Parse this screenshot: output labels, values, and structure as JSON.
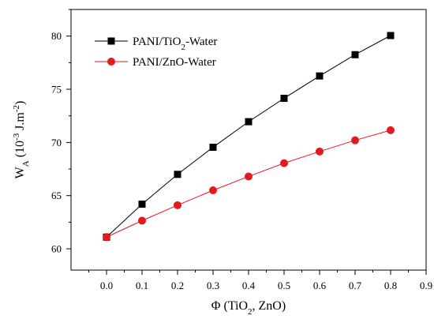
{
  "chart_data": {
    "type": "line",
    "xlabel": "Φ (TiO₂, ZnO)",
    "ylabel": "W_A (10⁻³ J.m⁻²)",
    "xlim": [
      -0.1,
      0.9
    ],
    "ylim": [
      58,
      82.5
    ],
    "xticks": [
      0.0,
      0.1,
      0.2,
      0.3,
      0.4,
      0.5,
      0.6,
      0.7,
      0.8,
      0.9
    ],
    "xtick_labels": [
      "0.0",
      "0.1",
      "0.2",
      "0.3",
      "0.4",
      "0.5",
      "0.6",
      "0.7",
      "0.8",
      "0.9"
    ],
    "yticks": [
      60,
      65,
      70,
      75,
      80
    ],
    "ytick_labels": [
      "60",
      "65",
      "70",
      "75",
      "80"
    ],
    "grid": false,
    "legend_position": "top-left",
    "x": [
      0.0,
      0.1,
      0.2,
      0.3,
      0.4,
      0.5,
      0.6,
      0.7,
      0.8
    ],
    "series": [
      {
        "name": "PANI/TiO2-Water",
        "marker": "square",
        "color": "#000000",
        "line_color": "#000000",
        "values": [
          61.1,
          64.2,
          67.0,
          69.55,
          71.95,
          74.15,
          76.25,
          78.25,
          80.05
        ]
      },
      {
        "name": "PANI/ZnO-Water",
        "marker": "circle",
        "color": "#e31a1c",
        "line_color": "#e31a1c",
        "values": [
          61.1,
          62.65,
          64.1,
          65.5,
          66.8,
          68.05,
          69.15,
          70.2,
          71.15
        ]
      }
    ]
  }
}
